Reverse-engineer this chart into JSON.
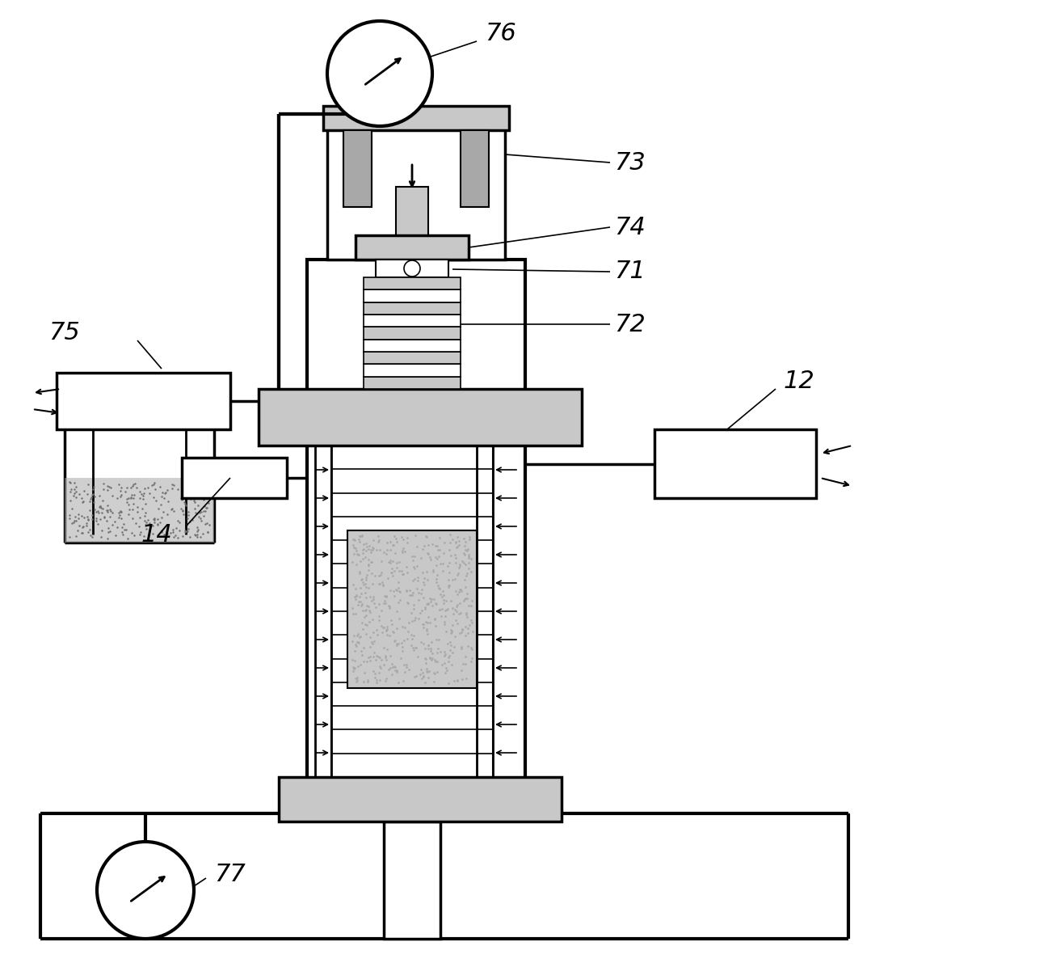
{
  "bg_color": "#ffffff",
  "lc": "#000000",
  "gray_light": "#c8c8c8",
  "gray_medium": "#a8a8a8",
  "gray_dark": "#707070",
  "lw_main": 2.5,
  "lw_thick": 3.0,
  "lw_thin": 1.5
}
